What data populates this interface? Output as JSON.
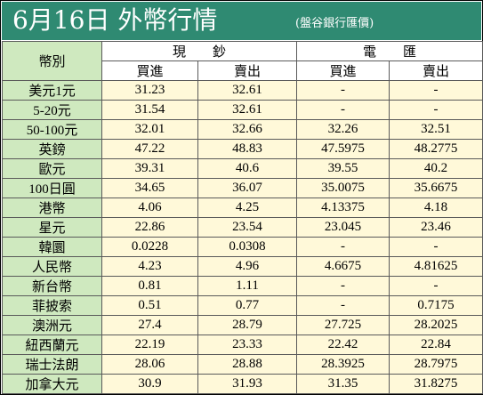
{
  "title": "6月16日 外幣行情",
  "subtitle": "(盤谷銀行匯價)",
  "header": {
    "currency_col": "幣別",
    "cash": "現　　鈔",
    "spot": "電　　匯",
    "buy": "買進",
    "sell": "賣出"
  },
  "rows": [
    {
      "name": "美元1元",
      "cash_buy": "31.23",
      "cash_sell": "32.61",
      "spot_buy": "-",
      "spot_sell": "-"
    },
    {
      "name": "5-20元",
      "cash_buy": "31.54",
      "cash_sell": "32.61",
      "spot_buy": "-",
      "spot_sell": "-"
    },
    {
      "name": "50-100元",
      "cash_buy": "32.01",
      "cash_sell": "32.66",
      "spot_buy": "32.26",
      "spot_sell": "32.51"
    },
    {
      "name": "英鎊",
      "cash_buy": "47.22",
      "cash_sell": "48.83",
      "spot_buy": "47.5975",
      "spot_sell": "48.2775"
    },
    {
      "name": "歐元",
      "cash_buy": "39.31",
      "cash_sell": "40.6",
      "spot_buy": "39.55",
      "spot_sell": "40.2"
    },
    {
      "name": "100日圓",
      "cash_buy": "34.65",
      "cash_sell": "36.07",
      "spot_buy": "35.0075",
      "spot_sell": "35.6675"
    },
    {
      "name": "港幣",
      "cash_buy": "4.06",
      "cash_sell": "4.25",
      "spot_buy": "4.13375",
      "spot_sell": "4.18"
    },
    {
      "name": "星元",
      "cash_buy": "22.86",
      "cash_sell": "23.54",
      "spot_buy": "23.045",
      "spot_sell": "23.46"
    },
    {
      "name": "韓圜",
      "cash_buy": "0.0228",
      "cash_sell": "0.0308",
      "spot_buy": "-",
      "spot_sell": "-"
    },
    {
      "name": "人民幣",
      "cash_buy": "4.23",
      "cash_sell": "4.96",
      "spot_buy": "4.6675",
      "spot_sell": "4.81625"
    },
    {
      "name": "新台幣",
      "cash_buy": "0.81",
      "cash_sell": "1.11",
      "spot_buy": "-",
      "spot_sell": "-"
    },
    {
      "name": "菲披索",
      "cash_buy": "0.51",
      "cash_sell": "0.77",
      "spot_buy": "-",
      "spot_sell": "0.7175"
    },
    {
      "name": "澳洲元",
      "cash_buy": "27.4",
      "cash_sell": "28.79",
      "spot_buy": "27.725",
      "spot_sell": "28.2025"
    },
    {
      "name": "紐西蘭元",
      "cash_buy": "22.19",
      "cash_sell": "23.33",
      "spot_buy": "22.42",
      "spot_sell": "22.84"
    },
    {
      "name": "瑞士法朗",
      "cash_buy": "28.06",
      "cash_sell": "28.88",
      "spot_buy": "28.3925",
      "spot_sell": "28.7975"
    },
    {
      "name": "加拿大元",
      "cash_buy": "30.9",
      "cash_sell": "31.93",
      "spot_buy": "31.35",
      "spot_sell": "31.8275"
    }
  ],
  "colors": {
    "title_bg": "#2f8a72",
    "label_bg": "#cfe9bf",
    "value_bg": "#fff9d9",
    "border": "#5a5a5a"
  }
}
